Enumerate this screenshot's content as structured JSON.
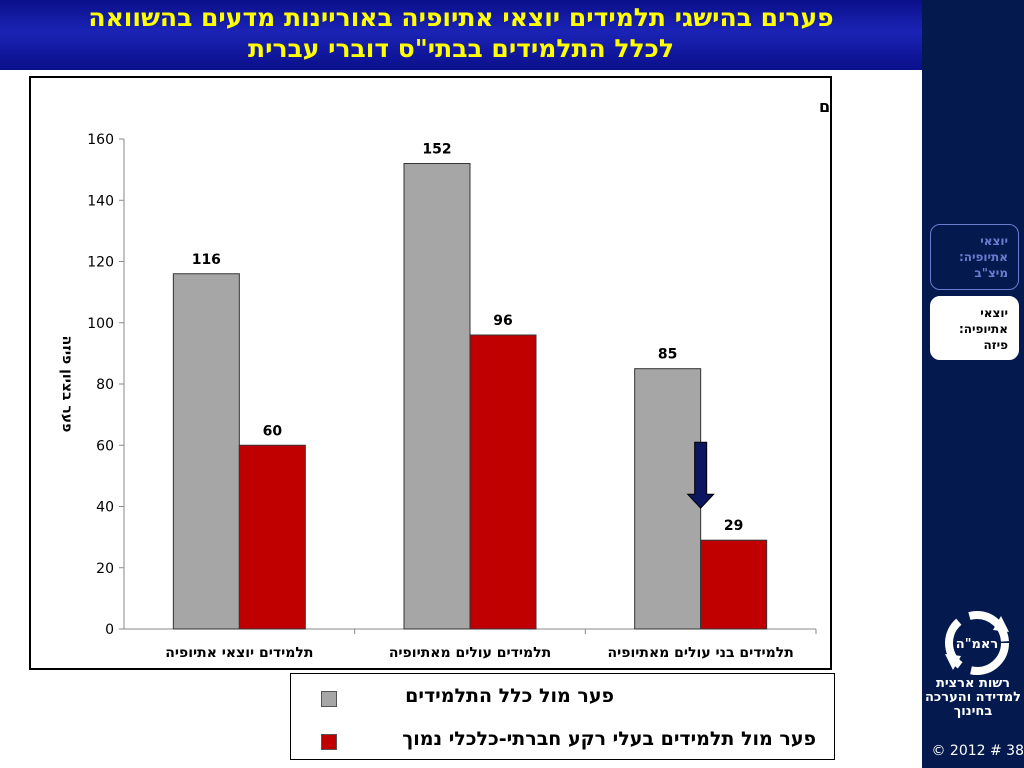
{
  "header": {
    "title_line_1": "פערים בהישגי תלמידים יוצאי אתיופיה באוריינות מדעים בהשוואה",
    "title_line_2": "לכלל התלמידים בבתי\"ס דוברי עברית"
  },
  "colors": {
    "header_bg": "#1b23b5",
    "title_text": "#ffff00",
    "sidebar_bg": "#041a4e",
    "series_gray": "#a6a6a6",
    "series_red": "#c00000",
    "arrow": "#0b1560"
  },
  "chart_data": {
    "type": "bar",
    "title": "מדעים",
    "ylabel": "פער בציון פיזה",
    "xlabel": "",
    "ylim": [
      0,
      160
    ],
    "yticks": [
      0,
      20,
      40,
      60,
      80,
      100,
      120,
      140,
      160
    ],
    "grid": false,
    "legend_position": "bottom",
    "categories": [
      "תלמידים יוצאי אתיופיה",
      "תלמידים עולים מאתיופיה",
      "תלמידים בני עולים מאתיופיה"
    ],
    "series": [
      {
        "name": "פער מול כלל התלמידים",
        "color": "#a6a6a6",
        "values": [
          116,
          152,
          85
        ]
      },
      {
        "name": "פער מול תלמידים בעלי רקע חברתי-כלכלי נמוך",
        "color": "#c00000",
        "values": [
          60,
          96,
          29
        ]
      }
    ],
    "annotations": [
      {
        "type": "down-arrow",
        "category_index": 2,
        "series_index": 1
      }
    ]
  },
  "sidebar": {
    "buttons": [
      {
        "label": "יוצאי אתיופיה: מיצ\"ב"
      },
      {
        "label": "יוצאי אתיופיה: פיזה"
      }
    ],
    "logo_text": "ראמ\"ה",
    "org_name": "רשות ארצית למדידה והערכה בחינוך",
    "copyright": "© 2012 # 38"
  }
}
